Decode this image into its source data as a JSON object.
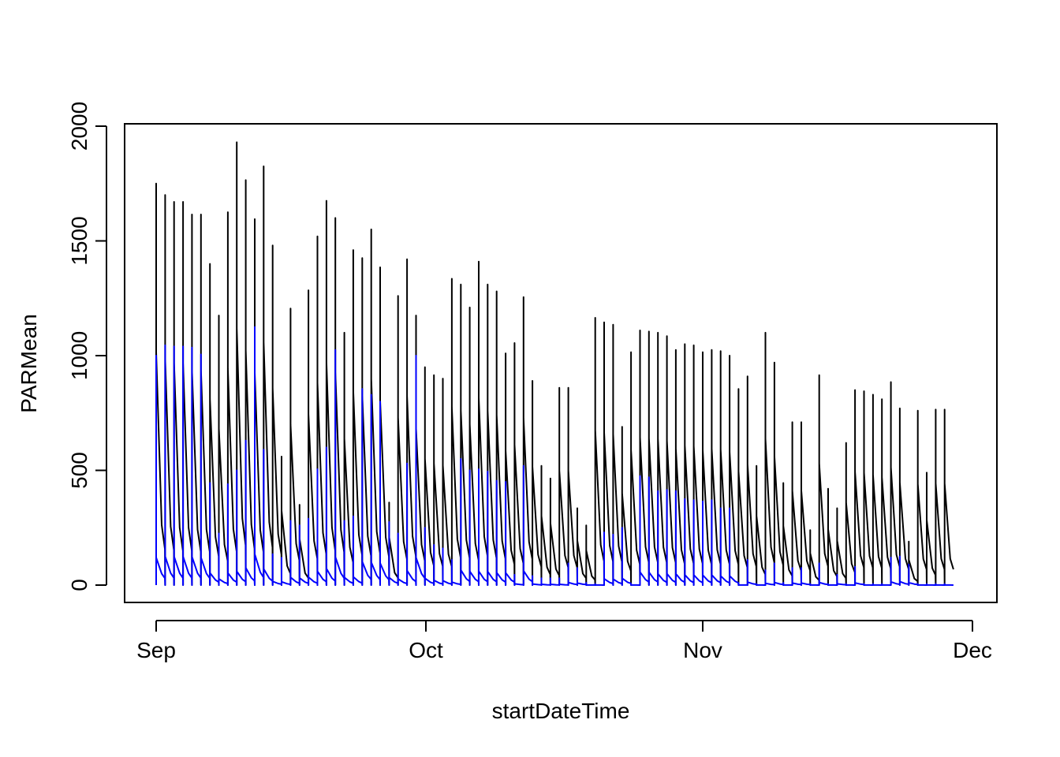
{
  "chart_data": {
    "type": "line",
    "title": "",
    "xlabel": "startDateTime",
    "ylabel": "PARMean",
    "x_ticks": [
      "Sep",
      "Oct",
      "Nov",
      "Dec"
    ],
    "y_ticks": [
      "0",
      "500",
      "1000",
      "1500",
      "2000"
    ],
    "xlim": [
      "2019-08-29",
      "2019-12-02"
    ],
    "ylim": [
      -75,
      2000
    ],
    "grid": false,
    "legend": "none",
    "colors": {
      "series_1": "#000000",
      "series_2": "#0000ff",
      "frame": "#000000"
    },
    "series": [
      {
        "color": "#000000",
        "day_peaks": [
          1750,
          1700,
          1670,
          1670,
          1615,
          1615,
          1400,
          1175,
          1625,
          1930,
          1765,
          1595,
          1825,
          1480,
          560,
          1205,
          350,
          1285,
          1520,
          1675,
          1600,
          1100,
          1460,
          1425,
          1550,
          1385,
          360,
          1260,
          1420,
          1175,
          950,
          915,
          900,
          1335,
          1310,
          1210,
          1410,
          1310,
          1280,
          1010,
          1055,
          1255,
          890,
          520,
          465,
          860,
          860,
          335,
          260,
          1165,
          1145,
          1135,
          690,
          1015,
          1110,
          1105,
          1100,
          1085,
          1025,
          1050,
          1045,
          1015,
          1025,
          1020,
          1000,
          855,
          910,
          520,
          1100,
          970,
          445,
          710,
          710,
          240,
          915,
          420,
          335,
          620,
          850,
          845,
          830,
          810,
          885,
          770,
          190,
          760,
          490,
          765,
          765
        ]
      },
      {
        "color": "#0000ff",
        "day_peaks": [
          1000,
          1045,
          1040,
          1040,
          1035,
          1005,
          445,
          225,
          440,
          500,
          630,
          1125,
          590,
          135,
          120,
          280,
          260,
          290,
          505,
          600,
          1025,
          280,
          300,
          855,
          830,
          800,
          275,
          225,
          530,
          1000,
          250,
          175,
          160,
          110,
          550,
          500,
          505,
          495,
          455,
          450,
          45,
          520,
          40,
          30,
          30,
          30,
          95,
          75,
          10,
          5,
          230,
          220,
          250,
          5,
          475,
          470,
          410,
          415,
          410,
          375,
          370,
          365,
          370,
          335,
          335,
          10,
          110,
          5,
          65,
          95,
          10,
          75,
          75,
          5,
          95,
          5,
          45,
          5,
          80,
          5,
          5,
          5,
          120,
          125,
          90,
          5,
          5,
          5,
          5
        ]
      }
    ]
  }
}
